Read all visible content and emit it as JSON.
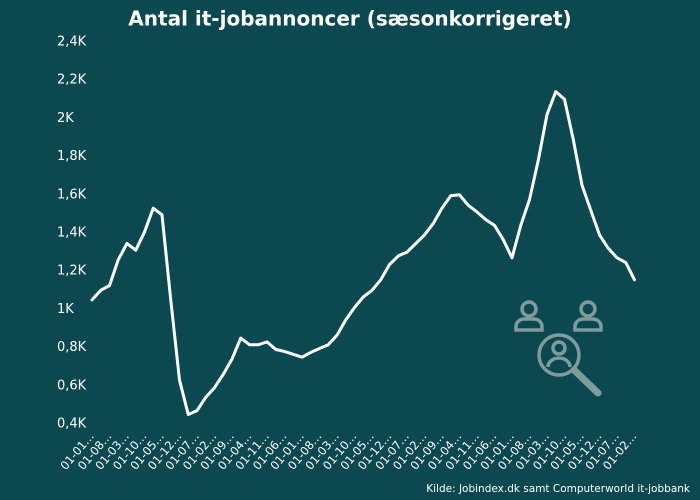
{
  "chart_data": {
    "type": "line",
    "title": "Antal it-jobannoncer (sæsonkorrigeret)",
    "source": "Kilde: Jobindex.dk samt Computerworld it-jobbank",
    "color": "#ffffff",
    "categories": [
      "01-01…",
      null,
      "01-08…",
      null,
      "01-03…",
      null,
      "01-10…",
      null,
      "01-05…",
      null,
      "01-12…",
      null,
      "01-07…",
      null,
      "01-02…",
      null,
      "01-09…",
      null,
      "01-04…",
      null,
      "01-11…",
      null,
      "01-06…",
      null,
      "01-01…",
      null,
      "01-08…",
      null,
      "01-03…",
      null,
      "01-10…",
      null,
      "01-05…",
      null,
      "01-12…",
      null,
      "01-07…",
      null,
      "01-02…",
      null,
      "01-09…",
      null,
      "01-04…",
      null,
      "01-11…",
      null,
      "01-06…",
      null,
      "01-01…",
      null,
      "01-08…",
      null,
      "01-03…",
      null,
      "01-10…",
      null,
      "01-05…",
      null,
      "01-12…",
      null,
      "01-07…",
      null,
      "01-02…"
    ],
    "values": [
      1050,
      1100,
      1125,
      1260,
      1345,
      1310,
      1405,
      1530,
      1495,
      1050,
      630,
      450,
      470,
      540,
      590,
      660,
      740,
      850,
      815,
      815,
      830,
      790,
      780,
      765,
      750,
      775,
      795,
      815,
      865,
      945,
      1010,
      1065,
      1100,
      1155,
      1235,
      1280,
      1300,
      1345,
      1390,
      1450,
      1530,
      1595,
      1600,
      1545,
      1510,
      1470,
      1440,
      1365,
      1270,
      1440,
      1575,
      1780,
      2020,
      2140,
      2100,
      1890,
      1650,
      1520,
      1390,
      1320,
      1270,
      1245,
      1155
    ],
    "ylim": [
      400,
      2400
    ],
    "yticks": [
      {
        "value": 400,
        "label": "0,4K"
      },
      {
        "value": 600,
        "label": "0,6K"
      },
      {
        "value": 800,
        "label": "0,8K"
      },
      {
        "value": 1000,
        "label": "1K"
      },
      {
        "value": 1200,
        "label": "1,2K"
      },
      {
        "value": 1400,
        "label": "1,4K"
      },
      {
        "value": 1600,
        "label": "1,6K"
      },
      {
        "value": 1800,
        "label": "1,8K"
      },
      {
        "value": 2000,
        "label": "2K"
      },
      {
        "value": 2200,
        "label": "2,2K"
      },
      {
        "value": 2400,
        "label": "2,4K"
      }
    ],
    "grid": false
  }
}
